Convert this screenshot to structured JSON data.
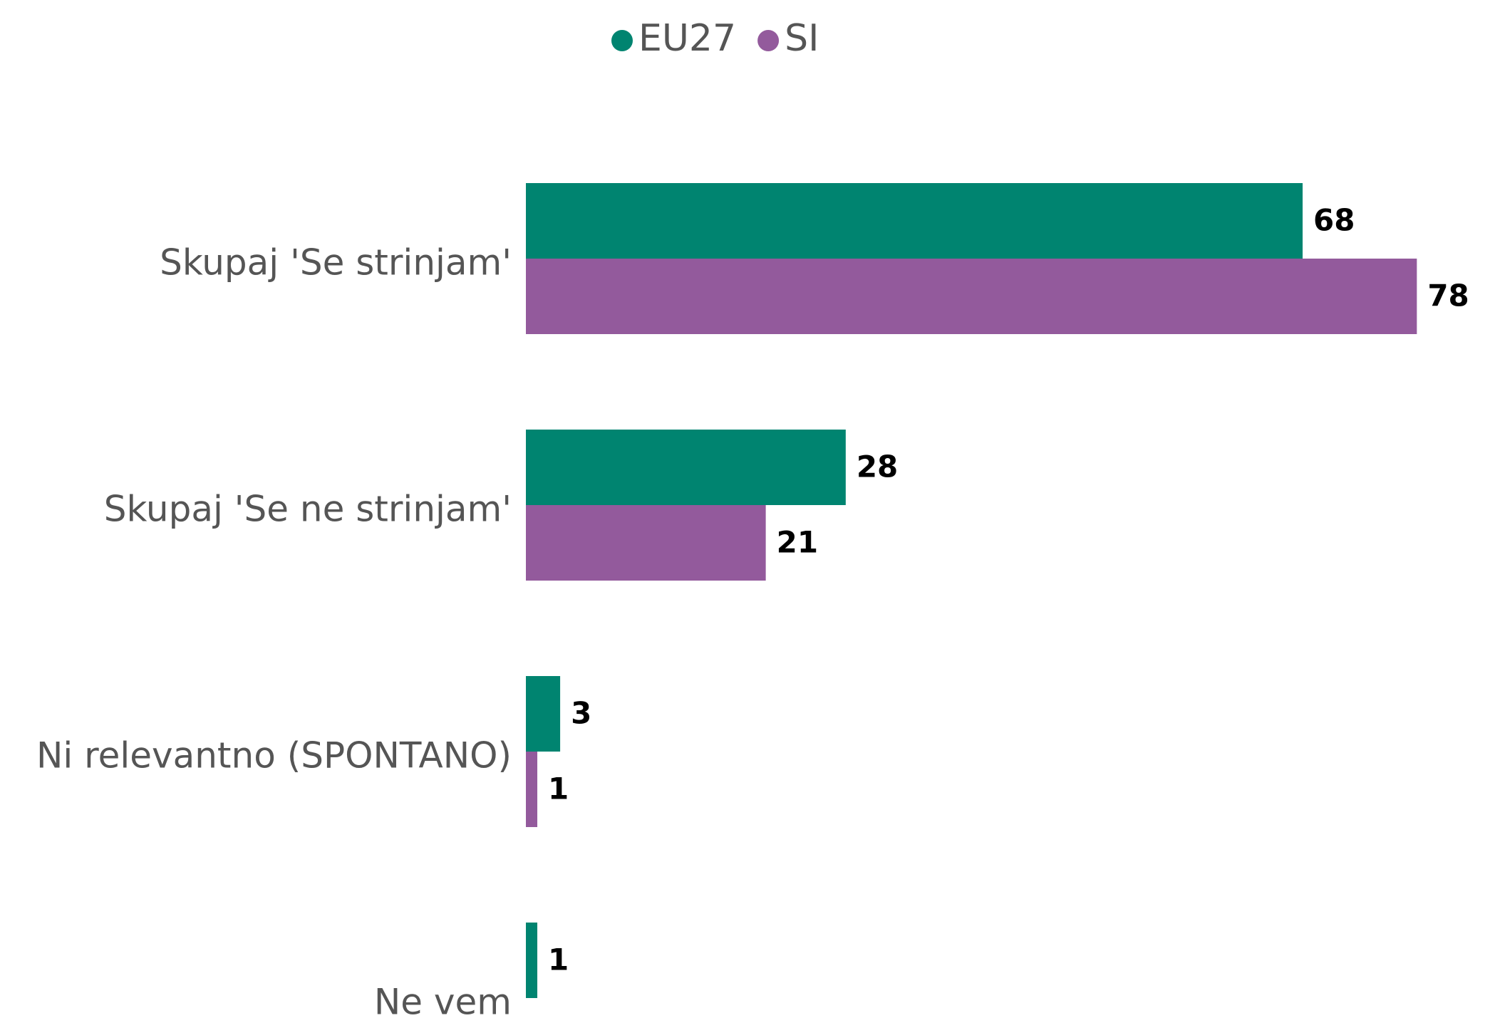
{
  "chart_data": {
    "type": "bar",
    "orientation": "horizontal",
    "categories": [
      "Skupaj 'Se strinjam'",
      "Skupaj 'Se ne strinjam'",
      "Ni relevantno (SPONTANO)",
      "Ne vem"
    ],
    "series": [
      {
        "name": "EU27",
        "color": "#008470",
        "values": [
          68,
          28,
          3,
          1
        ]
      },
      {
        "name": "SI",
        "color": "#935a9c",
        "values": [
          78,
          21,
          1,
          null
        ]
      }
    ],
    "legend": "top"
  }
}
